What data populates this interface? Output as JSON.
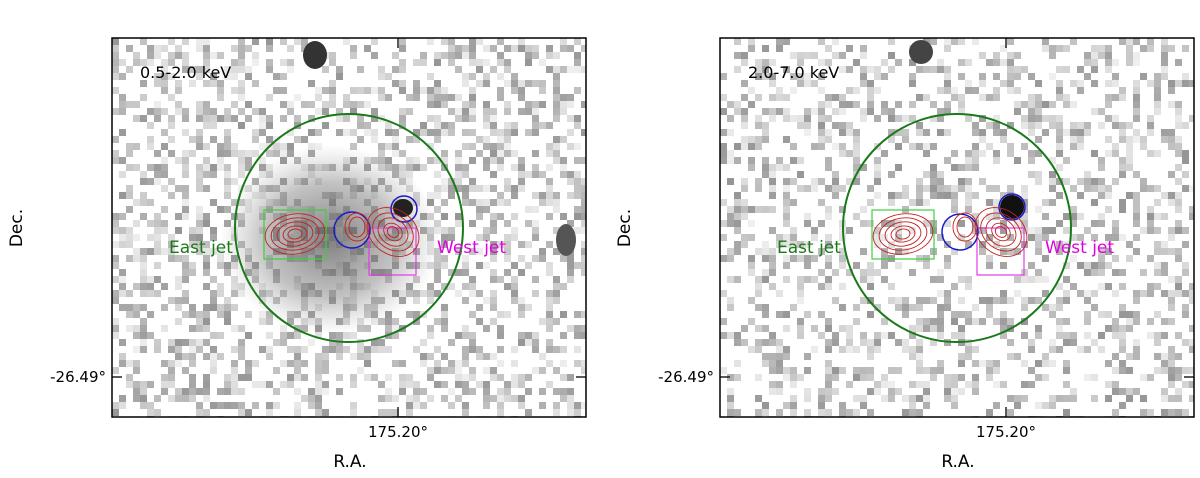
{
  "panels": [
    {
      "band_label": "0.5-2.0 keV",
      "east_label": "East jet",
      "west_label": "West jet",
      "xlabel": "R.A.",
      "ylabel": "Dec.",
      "xtick": "175.20°",
      "ytick": "-26.49°"
    },
    {
      "band_label": "2.0-7.0 keV",
      "east_label": "East jet",
      "west_label": "West jet",
      "xlabel": "R.A.",
      "ylabel": "Dec.",
      "xtick": "175.20°",
      "ytick": "-26.49°"
    }
  ],
  "colors": {
    "extraction_circle": "#1a7a1a",
    "east_region": "#3fcf3f",
    "west_region": "#e23be2",
    "core_circles": "#1a1acc",
    "contours": "#c42020",
    "east_text": "#1a7a1a",
    "west_text": "#e000e0"
  }
}
